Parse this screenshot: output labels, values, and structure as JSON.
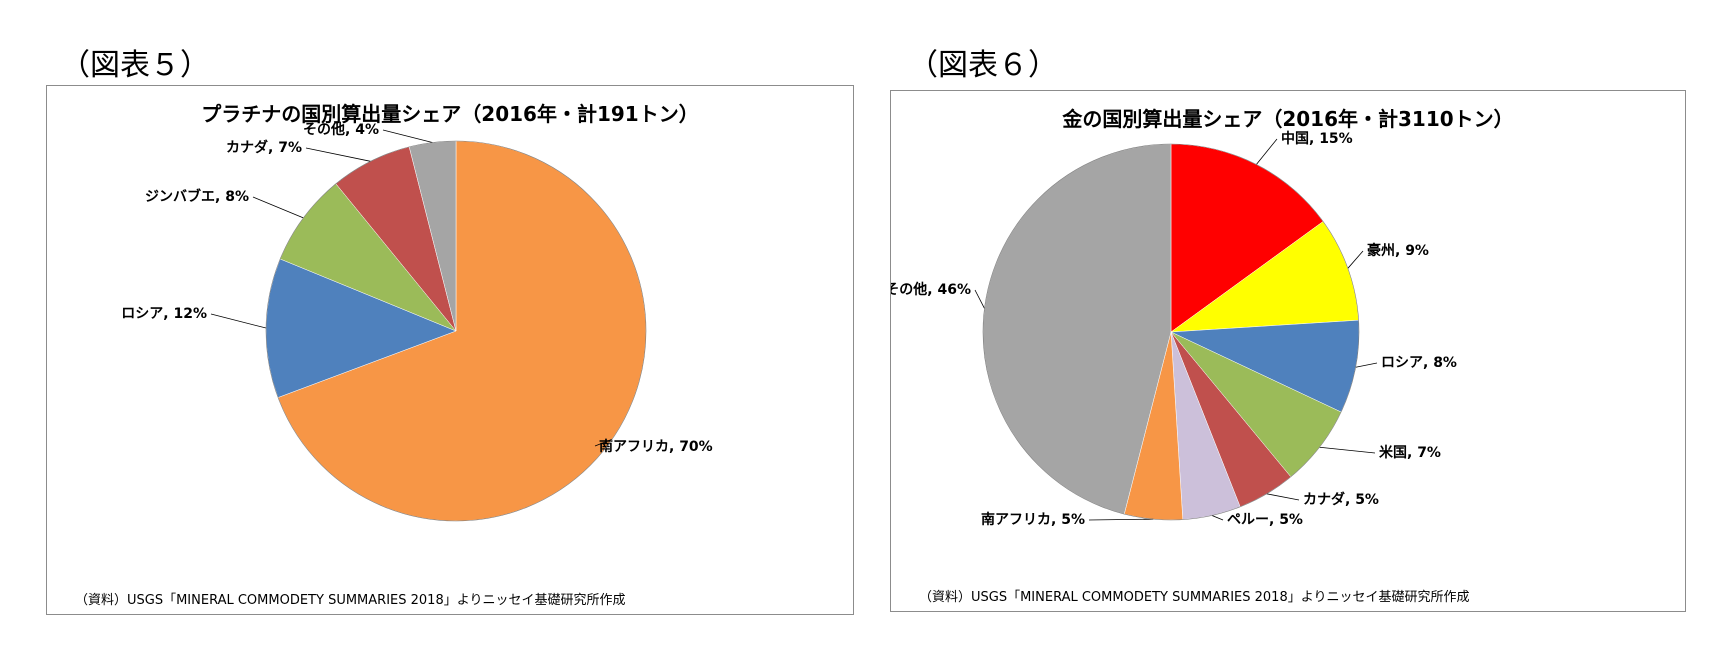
{
  "figures": [
    {
      "fig_label": "（図表５）",
      "source": "（資料）USGS「MINERAL COMMODETY SUMMARIES 2018」よりニッセイ基礎研究所作成"
    },
    {
      "fig_label": "（図表６）",
      "source": "（資料）USGS「MINERAL COMMODETY SUMMARIES 2018」よりニッセイ基礎研究所作成"
    }
  ],
  "chart_data": [
    {
      "type": "pie",
      "title": "プラチナの国別算出量シェア（2016年・計191トン）",
      "categories": [
        "南アフリカ",
        "ロシア",
        "ジンバブエ",
        "カナダ",
        "その他"
      ],
      "values": [
        70,
        12,
        8,
        7,
        4
      ],
      "unit": "%",
      "labels": [
        "南アフリカ, 70%",
        "ロシア, 12%",
        "ジンバブエ, 8%",
        "カナダ, 7%",
        "その他, 4%"
      ],
      "colors": [
        "#f79646",
        "#4f81bd",
        "#9bbb59",
        "#c0504d",
        "#a5a5a5"
      ],
      "start_angle_deg": 0,
      "direction": "clockwise",
      "legend": "none"
    },
    {
      "type": "pie",
      "title": "金の国別算出量シェア（2016年・計3110トン）",
      "categories": [
        "中国",
        "豪州",
        "ロシア",
        "米国",
        "カナダ",
        "ペルー",
        "南アフリカ",
        "その他"
      ],
      "values": [
        15,
        9,
        8,
        7,
        5,
        5,
        5,
        46
      ],
      "unit": "%",
      "labels": [
        "中国, 15%",
        "豪州, 9%",
        "ロシア, 8%",
        "米国, 7%",
        "カナダ, 5%",
        "ペルー, 5%",
        "南アフリカ, 5%",
        "その他, 46%"
      ],
      "colors": [
        "#ff0000",
        "#ffff00",
        "#4f81bd",
        "#9bbb59",
        "#c0504d",
        "#ccc0da",
        "#f79646",
        "#a5a5a5"
      ],
      "start_angle_deg": 0,
      "direction": "clockwise",
      "legend": "none"
    }
  ]
}
